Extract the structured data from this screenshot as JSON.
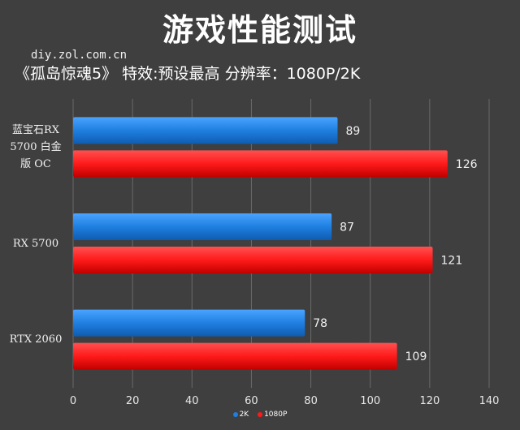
{
  "title": "游戏性能测试",
  "source": "diy.zol.com.cn",
  "subtitle": "《孤岛惊魂5》  特效:预设最高  分辨率：1080P/2K",
  "colors": {
    "background": "#3f3f3f",
    "series_2k": "#1f7fe0",
    "series_1080p": "#ff1a1a"
  },
  "chart_data": {
    "type": "bar",
    "orientation": "horizontal",
    "categories": [
      "蓝宝石RX 5700 白金版 OC",
      "RX 5700",
      "RTX 2060"
    ],
    "category_lines": [
      [
        "蓝宝石RX",
        "5700 白金",
        "版 OC"
      ],
      [
        "RX 5700"
      ],
      [
        "RTX 2060"
      ]
    ],
    "series": [
      {
        "name": "2K",
        "values": [
          89,
          87,
          78
        ],
        "color": "#1f7fe0"
      },
      {
        "name": "1080P",
        "values": [
          126,
          121,
          109
        ],
        "color": "#ff1a1a"
      }
    ],
    "xlim": [
      0,
      140
    ],
    "x_ticks": [
      "0",
      "20",
      "40",
      "60",
      "80",
      "100",
      "120",
      "140"
    ],
    "grid": true,
    "legend_position": "bottom"
  }
}
